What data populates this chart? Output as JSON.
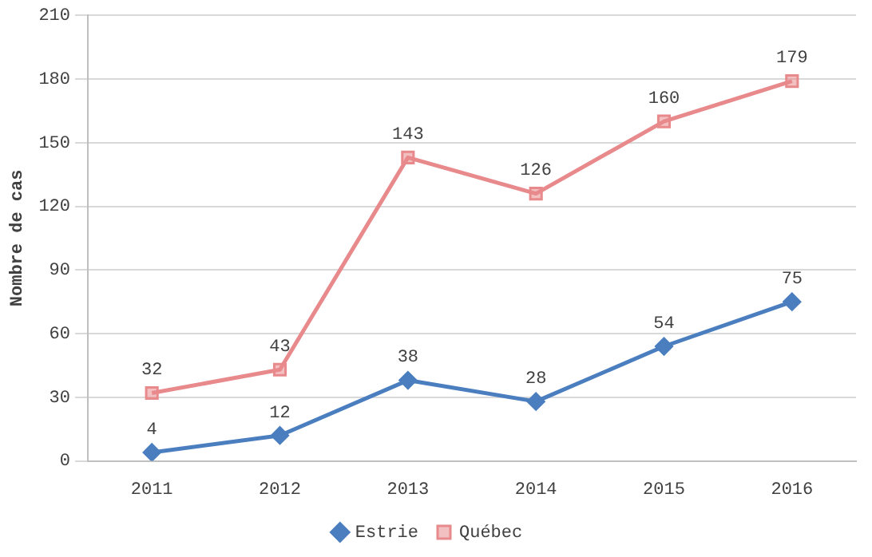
{
  "chart_data": {
    "type": "line",
    "ylabel": "Nombre de cas",
    "categories": [
      "2011",
      "2012",
      "2013",
      "2014",
      "2015",
      "2016"
    ],
    "series": [
      {
        "name": "Estrie",
        "color": "#4a7ebf",
        "marker": "diamond",
        "values": [
          4,
          12,
          38,
          28,
          54,
          75
        ]
      },
      {
        "name": "Québec",
        "color": "#e8898c",
        "marker": "square",
        "values": [
          32,
          43,
          143,
          126,
          160,
          179
        ]
      }
    ],
    "ylim": [
      0,
      210
    ],
    "yticks": [
      0,
      30,
      60,
      90,
      120,
      150,
      180,
      210
    ],
    "grid": "y",
    "legend": "bottom",
    "data_labels": true,
    "line_style": "solid"
  }
}
